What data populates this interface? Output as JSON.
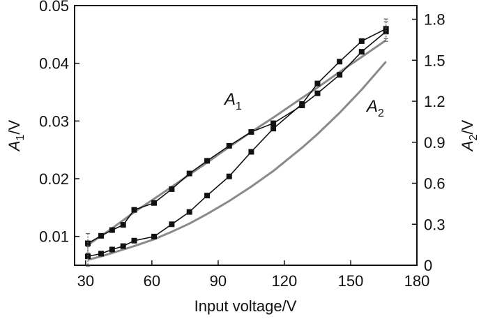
{
  "chart_data": {
    "type": "line",
    "x": [
      31,
      37,
      42,
      47,
      52,
      61,
      69,
      77,
      85,
      95,
      105,
      115,
      128,
      135,
      145,
      155,
      166
    ],
    "x_axis": {
      "label": "Input voltage/V",
      "range": [
        25,
        180
      ],
      "ticks": [
        30,
        60,
        90,
        120,
        150,
        180
      ],
      "tick_labels": [
        "30",
        "60",
        "90",
        "120",
        "150",
        "180"
      ]
    },
    "y_left": {
      "label_main": "A",
      "label_sub": "1",
      "label_tail": "/V",
      "range": [
        0.005,
        0.05
      ],
      "ticks": [
        0.01,
        0.02,
        0.03,
        0.04,
        0.05
      ],
      "tick_labels": [
        "0.01",
        "0.02",
        "0.03",
        "0.04",
        "0.05"
      ]
    },
    "y_right": {
      "label_main": "A",
      "label_sub": "2",
      "label_tail": "/V",
      "range": [
        0,
        1.9
      ],
      "ticks": [
        0,
        0.3,
        0.6,
        0.9,
        1.2,
        1.5,
        1.8
      ],
      "tick_labels": [
        "0",
        "0.3",
        "0.6",
        "0.9",
        "1.2",
        "1.5",
        "1.8"
      ]
    },
    "series": [
      {
        "name": "A1",
        "label_main": "A",
        "label_sub": "1",
        "axis": "left",
        "values": [
          0.0088,
          0.0101,
          0.0111,
          0.012,
          0.0146,
          0.0158,
          0.0182,
          0.0209,
          0.0231,
          0.0257,
          0.0281,
          0.0296,
          0.0327,
          0.0348,
          0.038,
          0.042,
          0.0455
        ],
        "fit": [
          0.0085,
          0.0101,
          0.0114,
          0.0128,
          0.0142,
          0.0165,
          0.0186,
          0.0207,
          0.0228,
          0.0255,
          0.0281,
          0.0306,
          0.034,
          0.0358,
          0.0385,
          0.0411,
          0.044
        ]
      },
      {
        "name": "A2",
        "label_main": "A",
        "label_sub": "2",
        "axis": "right",
        "values": [
          0.065,
          0.085,
          0.115,
          0.14,
          0.18,
          0.21,
          0.3,
          0.39,
          0.51,
          0.65,
          0.83,
          1.0,
          1.18,
          1.33,
          1.49,
          1.64,
          1.73
        ],
        "fit": [
          0.04,
          0.065,
          0.09,
          0.115,
          0.14,
          0.19,
          0.245,
          0.305,
          0.375,
          0.47,
          0.575,
          0.69,
          0.86,
          0.96,
          1.115,
          1.285,
          1.49
        ]
      }
    ],
    "marker": "filled-square",
    "grid": false,
    "legend": "inline labels"
  }
}
